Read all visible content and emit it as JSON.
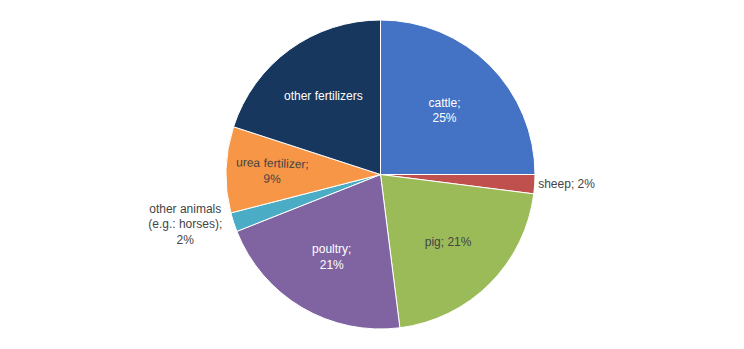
{
  "chart_data": {
    "type": "pie",
    "values": [
      25,
      2,
      21,
      21,
      2,
      9,
      20
    ],
    "value_labels": [
      "cattle;\n25%",
      "sheep; 2%",
      "pig; 21%",
      "poultry;\n21%",
      "other animals\n(e.g.: horses);\n2%",
      "urea fertilizer;\n9%",
      "other fertilizers"
    ],
    "colors": [
      "#4472C4",
      "#C0504D",
      "#9BBB59",
      "#8064A2",
      "#4BACC6",
      "#F79646",
      "#17375E"
    ]
  }
}
